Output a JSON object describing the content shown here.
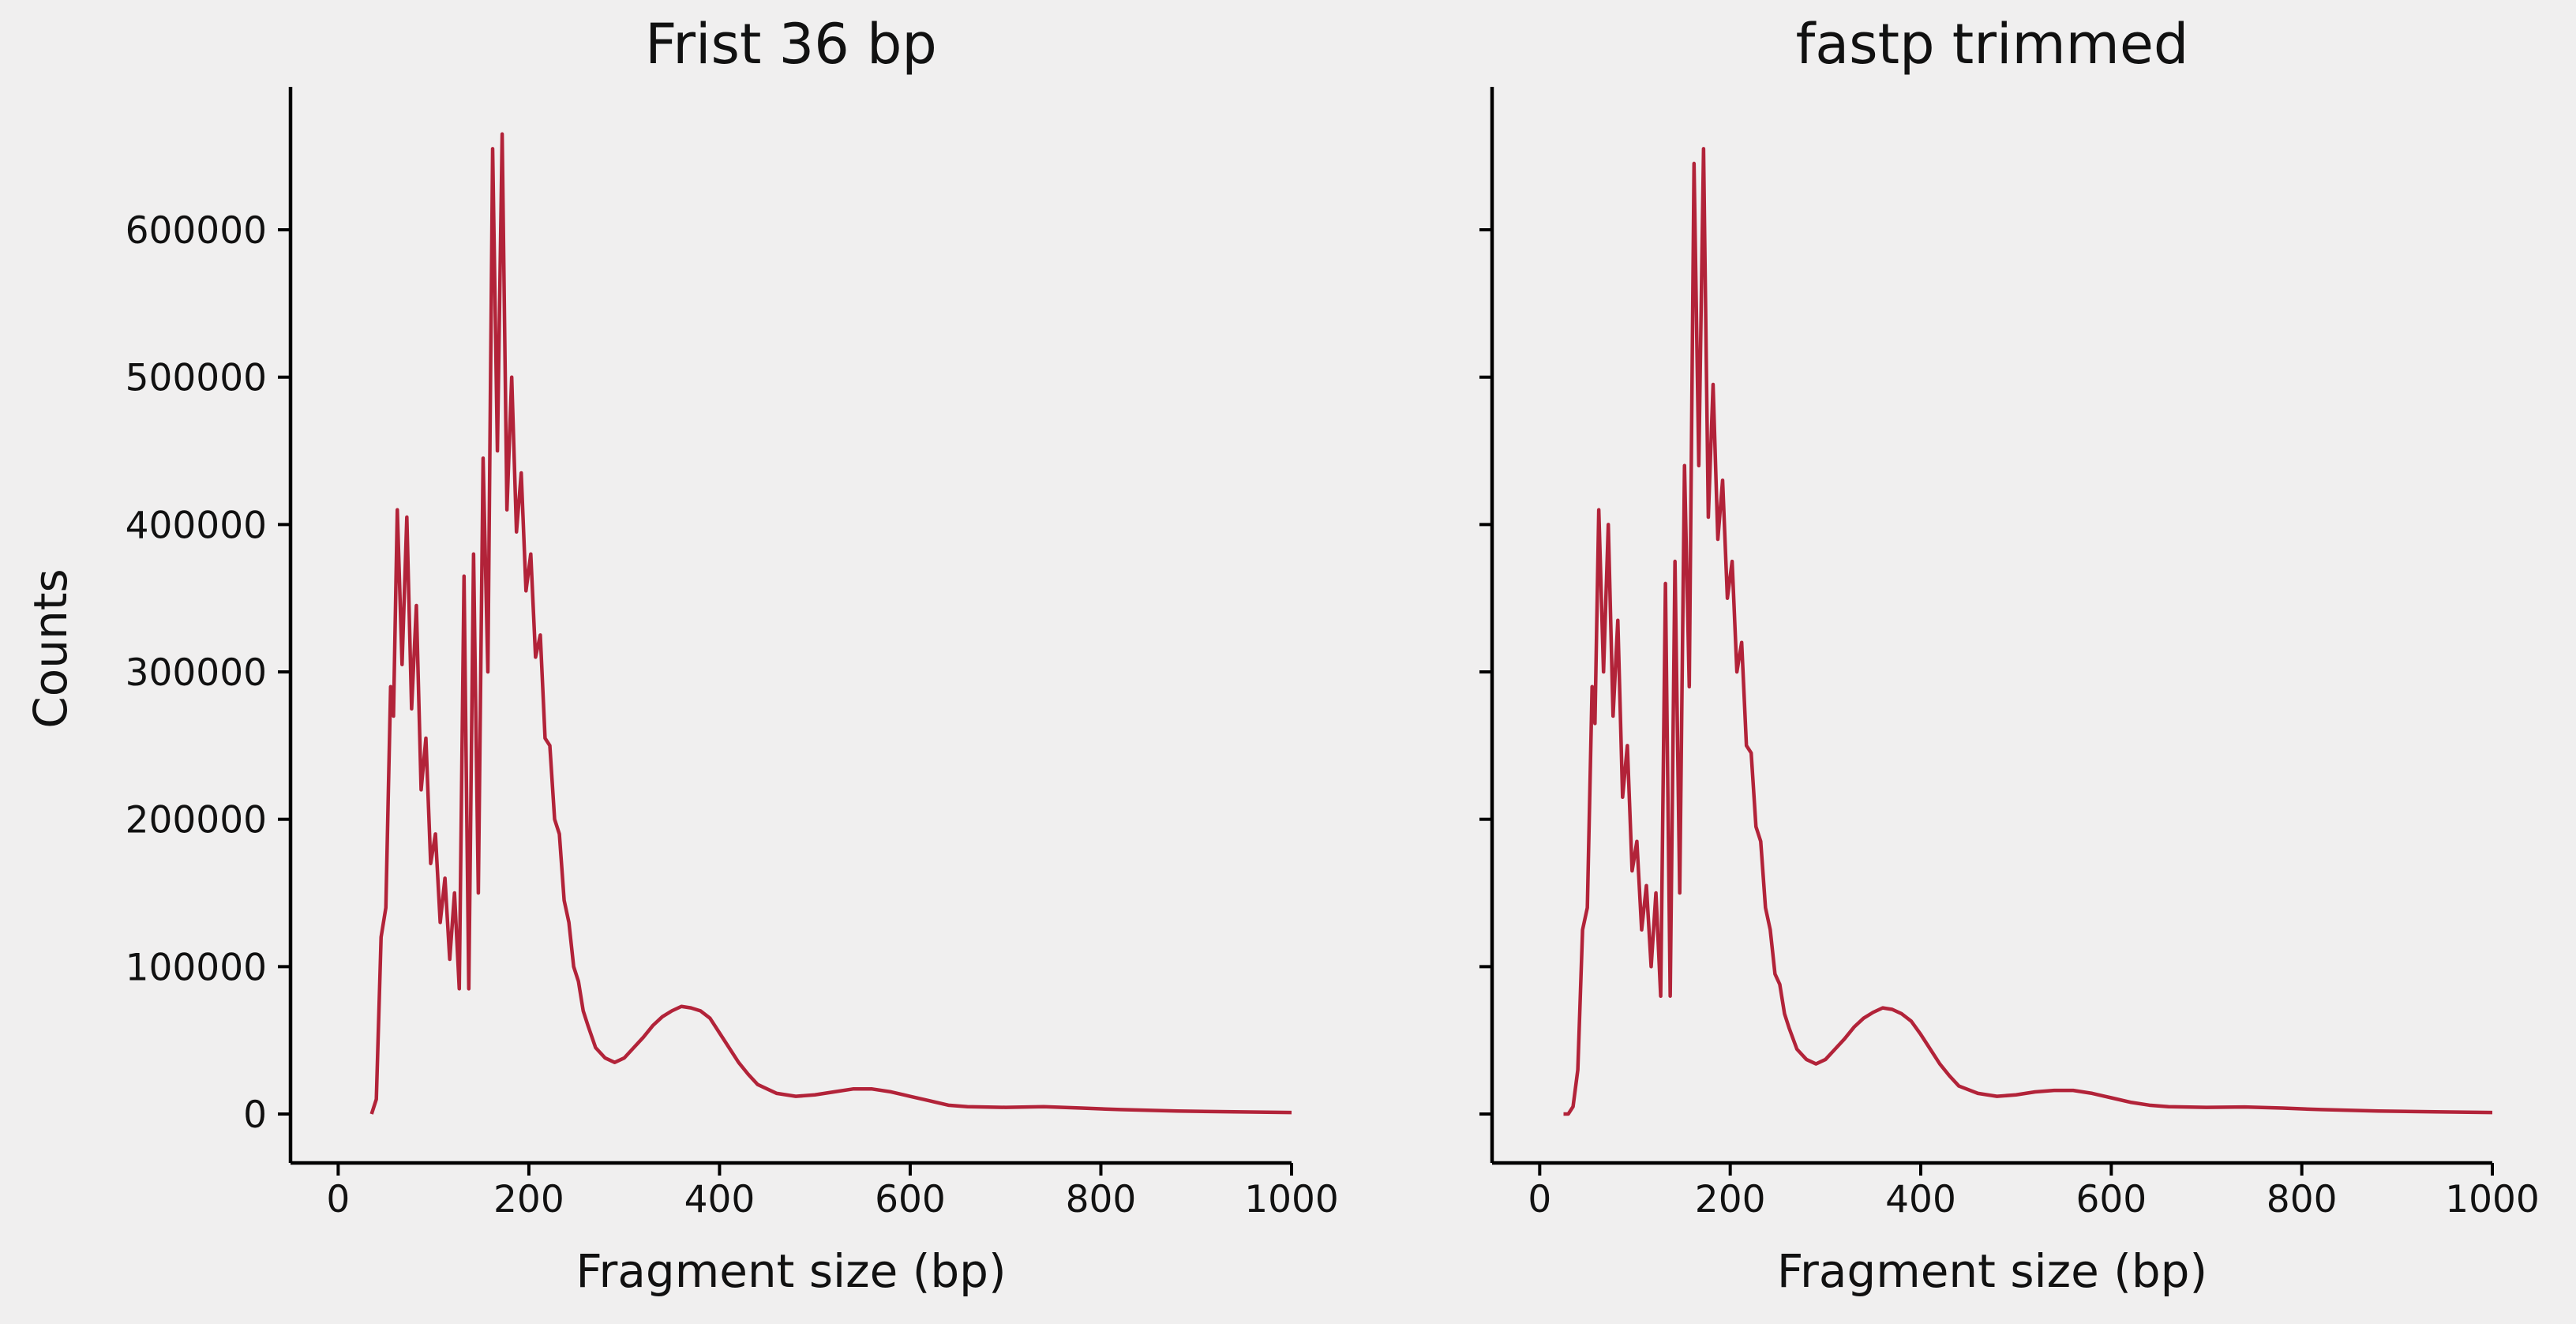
{
  "chart_data": [
    {
      "type": "line",
      "title": "Frist 36 bp",
      "xlabel": "Fragment size (bp)",
      "ylabel": "Counts",
      "color": "#b22339",
      "x": [
        35,
        40,
        45,
        50,
        55,
        58,
        62,
        67,
        72,
        77,
        82,
        87,
        92,
        97,
        102,
        107,
        112,
        117,
        122,
        127,
        132,
        137,
        142,
        147,
        152,
        157,
        162,
        167,
        172,
        177,
        182,
        187,
        192,
        197,
        202,
        207,
        212,
        217,
        222,
        227,
        232,
        237,
        242,
        247,
        252,
        257,
        262,
        270,
        280,
        290,
        300,
        310,
        320,
        330,
        340,
        350,
        360,
        370,
        380,
        390,
        400,
        410,
        420,
        430,
        440,
        460,
        480,
        500,
        520,
        540,
        560,
        580,
        600,
        620,
        640,
        660,
        700,
        740,
        780,
        820,
        880,
        940,
        1000
      ],
      "values": [
        0,
        10000,
        120000,
        140000,
        290000,
        270000,
        410000,
        305000,
        405000,
        275000,
        345000,
        220000,
        255000,
        170000,
        190000,
        130000,
        160000,
        105000,
        150000,
        85000,
        365000,
        85000,
        380000,
        150000,
        445000,
        300000,
        655000,
        450000,
        665000,
        410000,
        500000,
        395000,
        435000,
        355000,
        380000,
        310000,
        325000,
        255000,
        250000,
        200000,
        190000,
        145000,
        130000,
        100000,
        90000,
        70000,
        60000,
        45000,
        38000,
        35000,
        38000,
        45000,
        52000,
        60000,
        66000,
        70000,
        73000,
        72000,
        70000,
        65000,
        55000,
        45000,
        35000,
        27000,
        20000,
        14000,
        12000,
        13000,
        15000,
        17000,
        17000,
        15000,
        12000,
        9000,
        6000,
        5000,
        4500,
        5000,
        4000,
        3000,
        2000,
        1500,
        1000
      ],
      "xlim": [
        -50,
        1000
      ],
      "xticks": [
        0,
        200,
        400,
        600,
        800,
        1000
      ],
      "ylim": [
        -33200,
        697000
      ],
      "yticks": [
        0,
        100000,
        200000,
        300000,
        400000,
        500000,
        600000
      ],
      "ytick_labels": true
    },
    {
      "type": "line",
      "title": "fastp trimmed",
      "xlabel": "Fragment size (bp)",
      "color": "#b22339",
      "x": [
        25,
        30,
        35,
        40,
        45,
        50,
        55,
        58,
        62,
        67,
        72,
        77,
        82,
        87,
        92,
        97,
        102,
        107,
        112,
        117,
        122,
        127,
        132,
        137,
        142,
        147,
        152,
        157,
        162,
        167,
        172,
        177,
        182,
        187,
        192,
        197,
        202,
        207,
        212,
        217,
        222,
        227,
        232,
        237,
        242,
        247,
        252,
        257,
        262,
        270,
        280,
        290,
        300,
        310,
        320,
        330,
        340,
        350,
        360,
        370,
        380,
        390,
        400,
        410,
        420,
        430,
        440,
        460,
        480,
        500,
        520,
        540,
        560,
        580,
        600,
        620,
        640,
        660,
        700,
        740,
        780,
        820,
        880,
        940,
        1000
      ],
      "values": [
        0,
        0,
        5000,
        30000,
        125000,
        140000,
        290000,
        265000,
        410000,
        300000,
        400000,
        270000,
        335000,
        215000,
        250000,
        165000,
        185000,
        125000,
        155000,
        100000,
        150000,
        80000,
        360000,
        80000,
        375000,
        150000,
        440000,
        290000,
        645000,
        440000,
        655000,
        405000,
        495000,
        390000,
        430000,
        350000,
        375000,
        300000,
        320000,
        250000,
        245000,
        195000,
        185000,
        140000,
        125000,
        95000,
        88000,
        68000,
        58000,
        44000,
        37000,
        34000,
        37000,
        44000,
        51000,
        59000,
        65000,
        69000,
        72000,
        71000,
        68000,
        63000,
        54000,
        44000,
        34000,
        26000,
        19000,
        14000,
        12000,
        13000,
        15000,
        16000,
        16000,
        14000,
        11000,
        8000,
        6000,
        5000,
        4500,
        4800,
        4000,
        3000,
        2000,
        1500,
        1000
      ],
      "xlim": [
        -50,
        1000
      ],
      "xticks": [
        0,
        200,
        400,
        600,
        800,
        1000
      ],
      "ylim": [
        -33200,
        697000
      ],
      "yticks": [
        0,
        100000,
        200000,
        300000,
        400000,
        500000,
        600000
      ],
      "ytick_labels": false
    }
  ]
}
